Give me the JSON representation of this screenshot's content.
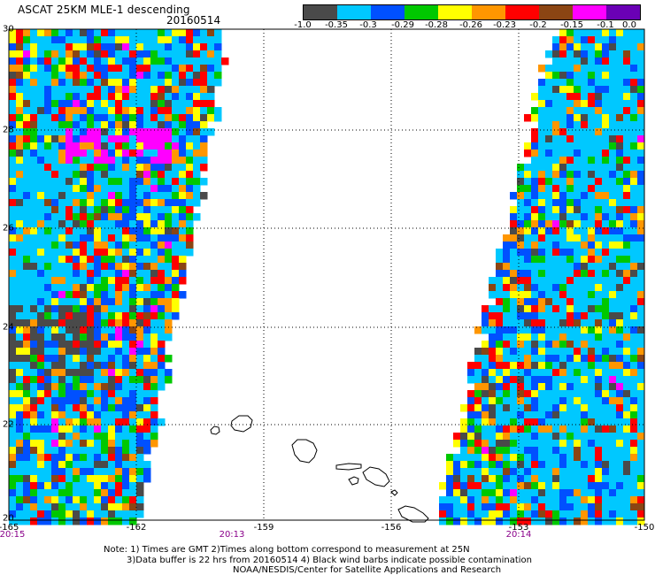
{
  "header": {
    "title": "ASCAT 25KM MLE-1 descending",
    "date": "20160514"
  },
  "colorbar": {
    "colors": [
      "#4a4a4a",
      "#00c8ff",
      "#0050ff",
      "#00c800",
      "#ffff00",
      "#ff9600",
      "#ff0000",
      "#8b4513",
      "#ff00ff",
      "#6a00b5"
    ],
    "labels": [
      "-1.0",
      "-0.35",
      "-0.3",
      "-0.29",
      "-0.28",
      "-0.26",
      "-0.23",
      "-0.2",
      "-0.15",
      "-0.1",
      "0.0"
    ]
  },
  "map": {
    "lon_ticks": [
      "-165",
      "-162",
      "-159",
      "-156",
      "-153",
      "-150"
    ],
    "lat_ticks": [
      "30",
      "28",
      "26",
      "24",
      "22",
      "20"
    ],
    "lon_range": [
      -165,
      -150
    ],
    "lat_range": [
      20,
      30
    ],
    "grid": "dotted",
    "background": "#ffffff"
  },
  "times": {
    "left": "20:15",
    "center": "20:13",
    "right": "20:14"
  },
  "notes": {
    "line1": "Note: 1) Times are GMT 2)Times along bottom correspond to measurement at 25N",
    "line2": "3)Data buffer is 22 hrs from 20160514 4) Black wind barbs indicate possible contamination",
    "line3": "NOAA/NESDIS/Center for Satellite Applications and Research"
  }
}
